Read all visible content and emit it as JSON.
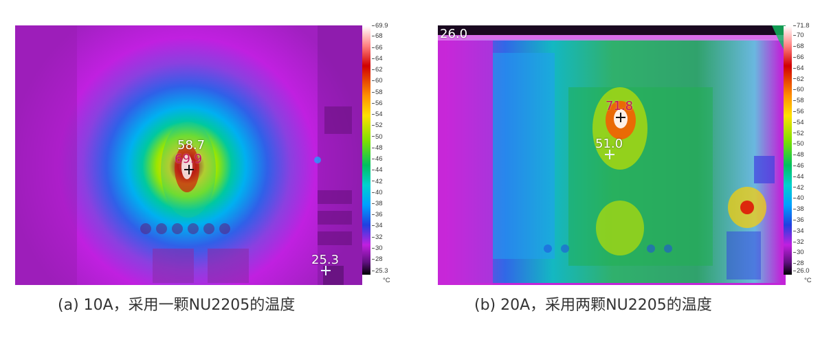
{
  "panel_a": {
    "caption": "(a) 10A，采用一颗NU2205的温度",
    "spot_labels": {
      "center": "58.7",
      "max": "69.9",
      "min": "25.3"
    },
    "scale": {
      "max_label": "69.9",
      "min_label": "25.3",
      "ticks": [
        "68",
        "66",
        "64",
        "62",
        "60",
        "58",
        "56",
        "54",
        "52",
        "50",
        "48",
        "46",
        "44",
        "42",
        "40",
        "38",
        "36",
        "34",
        "32",
        "30",
        "28"
      ],
      "unit": "°C"
    }
  },
  "panel_b": {
    "caption": "(b) 20A，采用两颗NU2205的温度",
    "spot_labels": {
      "min": "26.0",
      "max": "71.8",
      "center": "51.0"
    },
    "scale": {
      "max_label": "71.8",
      "min_label": "26.0",
      "ticks": [
        "70",
        "68",
        "66",
        "64",
        "62",
        "60",
        "58",
        "56",
        "54",
        "52",
        "50",
        "48",
        "46",
        "44",
        "42",
        "40",
        "38",
        "36",
        "34",
        "32",
        "30",
        "28"
      ],
      "unit": "°C"
    }
  }
}
